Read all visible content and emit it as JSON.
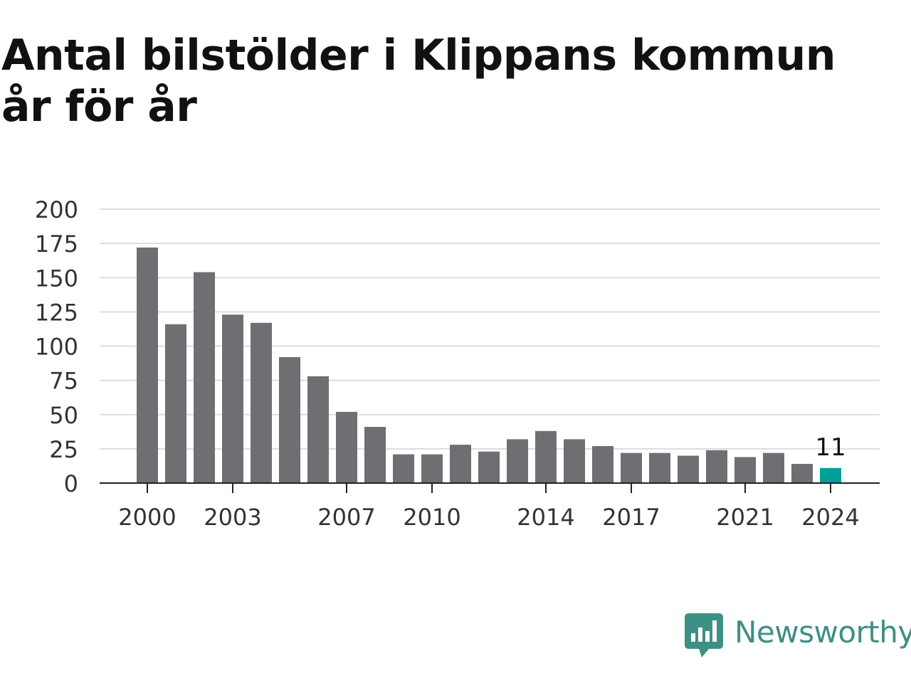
{
  "chart_data": {
    "type": "bar",
    "title": "Antal bilstölder i Klippans kommun år för år",
    "xlabel": "",
    "ylabel": "",
    "x": [
      2000,
      2001,
      2002,
      2003,
      2004,
      2005,
      2006,
      2007,
      2008,
      2009,
      2010,
      2011,
      2012,
      2013,
      2014,
      2015,
      2016,
      2017,
      2018,
      2019,
      2020,
      2021,
      2022,
      2023,
      2024
    ],
    "values": [
      172,
      116,
      154,
      123,
      117,
      92,
      78,
      52,
      41,
      21,
      21,
      28,
      23,
      32,
      38,
      32,
      27,
      22,
      22,
      20,
      24,
      19,
      22,
      14,
      11
    ],
    "x_tick_labels": [
      "2000",
      "2003",
      "2007",
      "2010",
      "2014",
      "2017",
      "2021",
      "2024"
    ],
    "y_ticks": [
      0,
      25,
      50,
      75,
      100,
      125,
      150,
      175,
      200
    ],
    "ylim": [
      0,
      200
    ],
    "grid": true,
    "legend": "none",
    "highlight": {
      "x": 2024,
      "label": "11"
    },
    "colors": {
      "bar": "#6f6e73",
      "highlight": "#00a097",
      "grid": "#dddddd",
      "axis": "#222222",
      "tick_text": "#333333"
    }
  },
  "brand": {
    "name": "Newsworthy",
    "logo_icon": "newsworthy-chart-bubble-icon",
    "color": "#3e8f86"
  }
}
